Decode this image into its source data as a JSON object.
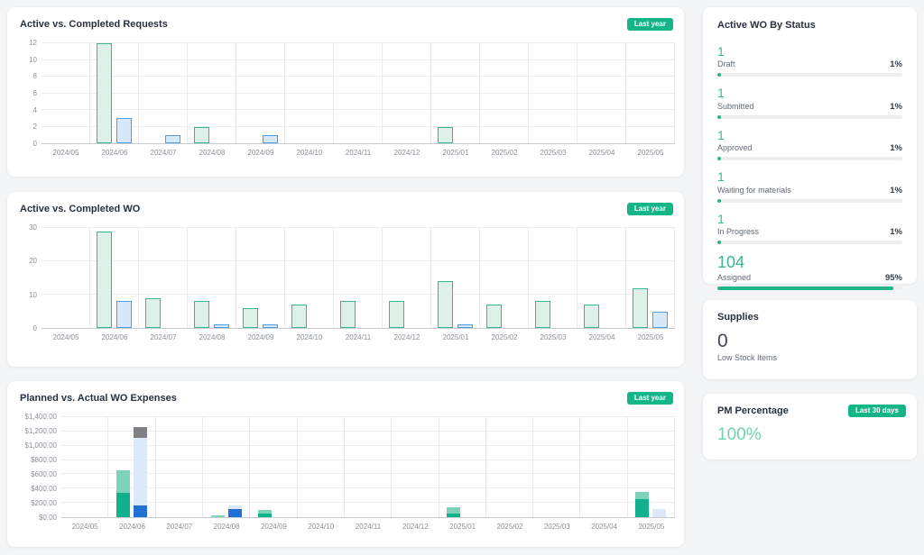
{
  "colors": {
    "page_bg": "#f4f5f6",
    "accent_green": "#14b586",
    "bar_green_border": "#35b795",
    "bar_green_fill": "#def1e9",
    "bar_blue_border": "#4aa0e0",
    "bar_blue_fill": "#d7e8fa",
    "stack_teal": "#12b18e",
    "stack_light_green": "#7dd2ba",
    "stack_blue": "#2170d4",
    "stack_light_blue": "#dce9f8",
    "stack_gray": "#808084",
    "count_green": "#35ba90",
    "pm_value_green": "#72d3aa"
  },
  "charts": [
    {
      "title": "Active vs. Completed Requests",
      "badge": "Last year",
      "type": "bar",
      "legend_position": "none",
      "grid": true,
      "categories": [
        "2024/05",
        "2024/06",
        "2024/07",
        "2024/08",
        "2024/09",
        "2024/10",
        "2024/11",
        "2024/12",
        "2025/01",
        "2025/02",
        "2025/03",
        "2025/04",
        "2025/05"
      ],
      "y_ticks": [
        "0",
        "2",
        "4",
        "6",
        "8",
        "10",
        "12"
      ],
      "y_max": 12,
      "series": [
        {
          "stack": "active",
          "style": "outline-green",
          "values": [
            0,
            12,
            0,
            2,
            0,
            0,
            0,
            0,
            2,
            0,
            0,
            0,
            0
          ]
        },
        {
          "stack": "completed",
          "style": "outline-blue",
          "values": [
            0,
            3,
            1,
            0,
            1,
            0,
            0,
            0,
            0,
            0,
            0,
            0,
            0
          ]
        }
      ]
    },
    {
      "title": "Active vs. Completed WO",
      "badge": "Last year",
      "type": "bar",
      "legend_position": "none",
      "grid": true,
      "categories": [
        "2024/05",
        "2024/06",
        "2024/07",
        "2024/08",
        "2024/09",
        "2024/10",
        "2024/11",
        "2024/12",
        "2025/01",
        "2025/02",
        "2025/03",
        "2025/04",
        "2025/05"
      ],
      "y_ticks": [
        "0",
        "10",
        "20",
        "30"
      ],
      "y_max": 30,
      "series": [
        {
          "stack": "active",
          "style": "outline-green",
          "values": [
            0,
            29,
            9,
            8,
            6,
            7,
            8,
            8,
            14,
            7,
            8,
            7,
            12
          ]
        },
        {
          "stack": "completed",
          "style": "outline-blue",
          "values": [
            0,
            8,
            0,
            1,
            1,
            0,
            0,
            0,
            1,
            0,
            0,
            0,
            5
          ]
        }
      ]
    },
    {
      "title": "Planned vs. Actual WO Expenses",
      "badge": "Last year",
      "type": "bar",
      "subtype": "stacked",
      "legend_position": "none",
      "grid": true,
      "categories": [
        "2024/05",
        "2024/06",
        "2024/07",
        "2024/08",
        "2024/09",
        "2024/10",
        "2024/11",
        "2024/12",
        "2025/01",
        "2025/02",
        "2025/03",
        "2025/04",
        "2025/05"
      ],
      "y_ticks": [
        "$0.00",
        "$200.00",
        "$400.00",
        "$600.00",
        "$800.00",
        "$1,000.00",
        "$1,200.00",
        "$1,400.00"
      ],
      "y_max": 1400,
      "series": [
        {
          "stack": "planned",
          "style": "solid-teal",
          "values": [
            0,
            340,
            0,
            0,
            55,
            0,
            0,
            0,
            45,
            0,
            0,
            0,
            250
          ]
        },
        {
          "stack": "planned",
          "style": "solid-lightgreen",
          "values": [
            0,
            320,
            0,
            25,
            40,
            0,
            0,
            0,
            95,
            0,
            0,
            0,
            100
          ]
        },
        {
          "stack": "actual",
          "style": "solid-blue",
          "values": [
            0,
            170,
            0,
            115,
            0,
            0,
            0,
            0,
            0,
            0,
            0,
            0,
            0
          ]
        },
        {
          "stack": "actual",
          "style": "solid-lightblue",
          "values": [
            0,
            940,
            0,
            45,
            0,
            0,
            0,
            0,
            0,
            0,
            0,
            0,
            110
          ]
        },
        {
          "stack": "actual",
          "style": "solid-gray",
          "values": [
            0,
            150,
            0,
            0,
            0,
            0,
            0,
            0,
            0,
            0,
            0,
            0,
            0
          ]
        }
      ]
    }
  ],
  "status_panel": {
    "title": "Active WO By Status",
    "items": [
      {
        "count": "1",
        "label": "Draft",
        "percent": "1%",
        "pct": 1,
        "big": false
      },
      {
        "count": "1",
        "label": "Submitted",
        "percent": "1%",
        "pct": 1,
        "big": false
      },
      {
        "count": "1",
        "label": "Approved",
        "percent": "1%",
        "pct": 1,
        "big": false
      },
      {
        "count": "1",
        "label": "Waiting for materials",
        "percent": "1%",
        "pct": 1,
        "big": false
      },
      {
        "count": "1",
        "label": "In Progress",
        "percent": "1%",
        "pct": 1,
        "big": false
      },
      {
        "count": "104",
        "label": "Assigned",
        "percent": "95%",
        "pct": 95,
        "big": true
      }
    ]
  },
  "supplies_panel": {
    "title": "Supplies",
    "count": "0",
    "label": "Low Stock Items"
  },
  "pm_panel": {
    "title": "PM Percentage",
    "badge": "Last 30 days",
    "value": "100%"
  }
}
